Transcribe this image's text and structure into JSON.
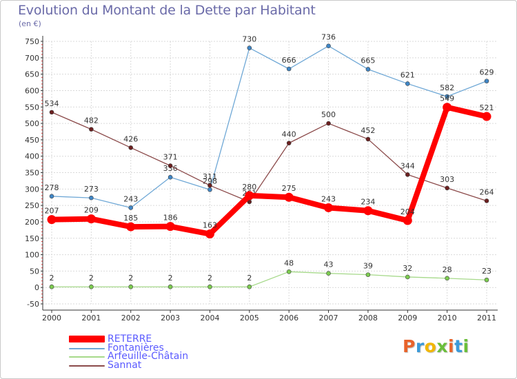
{
  "header": {
    "title": "Evolution du Montant de la Dette par Habitant",
    "subtitle": "(en €)"
  },
  "brand": {
    "text": "Proxiti",
    "colors": [
      "#e8632b",
      "#3b9ad9",
      "#f2b705",
      "#6abf3a",
      "#e8632b",
      "#3b9ad9",
      "#6abf3a"
    ]
  },
  "chart_data": {
    "type": "line",
    "title": "Evolution du Montant de la Dette par Habitant",
    "subtitle": "(en €)",
    "xlabel": "",
    "ylabel": "",
    "ylim": [
      -50,
      750
    ],
    "yticks": [
      -50,
      0,
      50,
      100,
      150,
      200,
      250,
      300,
      350,
      400,
      450,
      500,
      550,
      600,
      650,
      700,
      750
    ],
    "grid": true,
    "legend_position": "bottom-left",
    "x": [
      "2000",
      "2001",
      "2002",
      "2003",
      "2004",
      "2005",
      "2006",
      "2007",
      "2008",
      "2009",
      "2010",
      "2011"
    ],
    "series": [
      {
        "name": "Fontanières",
        "color": "#6fa8d6",
        "marker": "#3f86c6",
        "values": [
          278,
          273,
          243,
          336,
          298,
          730,
          666,
          736,
          665,
          621,
          582,
          629
        ]
      },
      {
        "name": "Arfeuille-Châtain",
        "color": "#a6d98a",
        "marker": "#7ccc4f",
        "values": [
          2,
          2,
          2,
          2,
          2,
          2,
          48,
          43,
          39,
          32,
          28,
          23
        ]
      },
      {
        "name": "Sannat",
        "color": "#8b4a4a",
        "marker": "#6b1f1f",
        "values": [
          534,
          482,
          426,
          371,
          311,
          261,
          440,
          500,
          452,
          344,
          303,
          264
        ]
      },
      {
        "name": "RETERRE",
        "color": "#ff0000",
        "marker": "#ff0000",
        "values": [
          207,
          209,
          185,
          186,
          163,
          280,
          275,
          243,
          234,
          204,
          549,
          521
        ]
      }
    ]
  },
  "legend": {
    "items": [
      {
        "label": "RETERRE",
        "color": "#ff0000",
        "thickness": 10
      },
      {
        "label": "Fontanières",
        "color": "#6fa8d6",
        "thickness": 2
      },
      {
        "label": "Arfeuille-Châtain",
        "color": "#a6d98a",
        "thickness": 2
      },
      {
        "label": "Sannat",
        "color": "#8b4a4a",
        "thickness": 2
      }
    ]
  }
}
